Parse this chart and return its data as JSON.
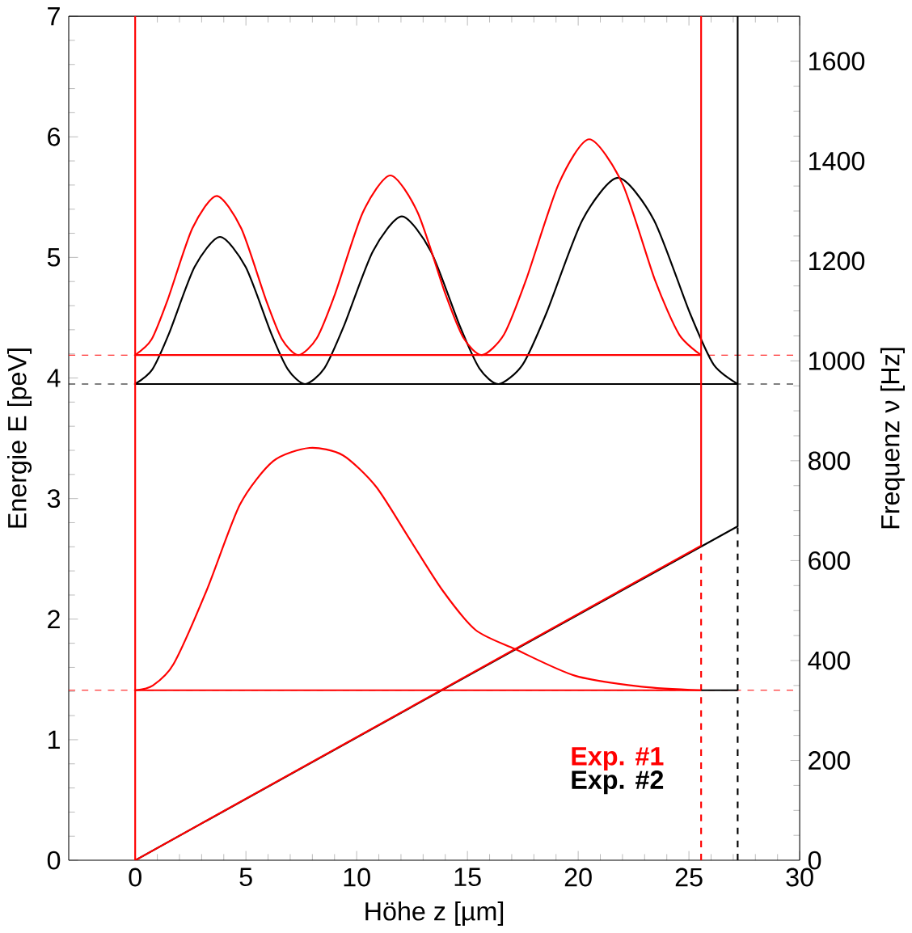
{
  "chart_data": {
    "type": "line",
    "xlabel": "Höhe  z [µm]",
    "ylabel": "Energie E [peV]",
    "y2label": "Frequenz ν [Hz]",
    "xlim": [
      -3,
      30
    ],
    "xticks": [
      0,
      5,
      10,
      15,
      20,
      25,
      30
    ],
    "ylim": [
      0,
      7
    ],
    "yticks": [
      0,
      1,
      2,
      3,
      4,
      5,
      6,
      7
    ],
    "y2lim": [
      0,
      1690
    ],
    "y2ticks": [
      0,
      200,
      400,
      600,
      800,
      1000,
      1200,
      1400,
      1600
    ],
    "legend": "bottom right",
    "line_style": "solid",
    "marker": "none",
    "ref_lines": [
      {
        "axis": "y",
        "value": 4.19,
        "color": "#ff0000",
        "line_style": "dashed"
      },
      {
        "axis": "y",
        "value": 3.95,
        "color": "#000000",
        "line_style": "dashed"
      },
      {
        "axis": "y",
        "value": 1.41,
        "color": "#ff0000",
        "line_style": "dashed"
      }
    ],
    "series": [
      {
        "color": "#000000",
        "x": [
          27.2,
          27.2
        ],
        "values": [
          0,
          2.77
        ],
        "line_style": "dashed"
      },
      {
        "color": "#ff0000",
        "x": [
          25.55,
          25.55
        ],
        "values": [
          0,
          2.61
        ],
        "line_style": "dashed"
      },
      {
        "name": "Exp. #2",
        "color": "#000000",
        "x": [
          0,
          27.2,
          27.2
        ],
        "values": [
          0,
          2.77,
          7
        ]
      },
      {
        "color": "#000000",
        "x": [
          0,
          27.2
        ],
        "values": [
          3.95,
          3.95
        ]
      },
      {
        "color": "#000000",
        "x": [
          0,
          0.77,
          1.53,
          2.68,
          3.83,
          4.99,
          6.14,
          6.9,
          7.67,
          8.54,
          9.42,
          10.73,
          12.04,
          13.35,
          14.66,
          15.54,
          16.41,
          17.49,
          18.57,
          20.19,
          21.8,
          23.42,
          25.04,
          26.12,
          27.2
        ],
        "values": [
          3.95,
          4.07,
          4.37,
          4.92,
          5.17,
          4.92,
          4.37,
          4.07,
          3.95,
          4.08,
          4.43,
          5.05,
          5.34,
          5.05,
          4.43,
          4.08,
          3.95,
          4.11,
          4.54,
          5.31,
          5.66,
          5.31,
          4.54,
          4.11,
          3.95
        ]
      },
      {
        "color": "#000000",
        "x": [
          25.55,
          27.2
        ],
        "values": [
          1.41,
          1.41
        ]
      },
      {
        "name": "Exp. #1",
        "color": "#ff0000",
        "x": [
          0,
          0,
          25.55,
          25.55
        ],
        "values": [
          7,
          0,
          2.61,
          7
        ]
      },
      {
        "color": "#ff0000",
        "x": [
          0,
          25.55
        ],
        "values": [
          4.19,
          4.19
        ]
      },
      {
        "color": "#ff0000",
        "x": [
          0,
          25.55
        ],
        "values": [
          1.41,
          1.41
        ]
      },
      {
        "color": "#ff0000",
        "x": [
          0,
          0.74,
          1.47,
          2.58,
          3.68,
          4.79,
          5.9,
          6.63,
          7.37,
          8.2,
          9.03,
          10.27,
          11.52,
          12.76,
          14.0,
          14.83,
          15.66,
          16.65,
          17.64,
          19.12,
          20.5,
          22.0,
          23.47,
          24.56,
          25.55
        ],
        "values": [
          4.19,
          4.32,
          4.65,
          5.24,
          5.51,
          5.24,
          4.65,
          4.32,
          4.19,
          4.33,
          4.7,
          5.37,
          5.68,
          5.37,
          4.7,
          4.33,
          4.19,
          4.36,
          4.81,
          5.61,
          5.98,
          5.61,
          4.81,
          4.36,
          4.19
        ]
      },
      {
        "color": "#ff0000",
        "x": [
          0,
          0.8,
          1.74,
          3.23,
          4.73,
          6.23,
          7.87,
          9.37,
          10.87,
          12.37,
          13.87,
          15.37,
          17.17,
          19.87,
          22.87,
          25.55
        ],
        "values": [
          1.41,
          1.45,
          1.63,
          2.24,
          2.95,
          3.31,
          3.42,
          3.36,
          3.1,
          2.67,
          2.24,
          1.91,
          1.75,
          1.53,
          1.44,
          1.41
        ]
      }
    ]
  }
}
